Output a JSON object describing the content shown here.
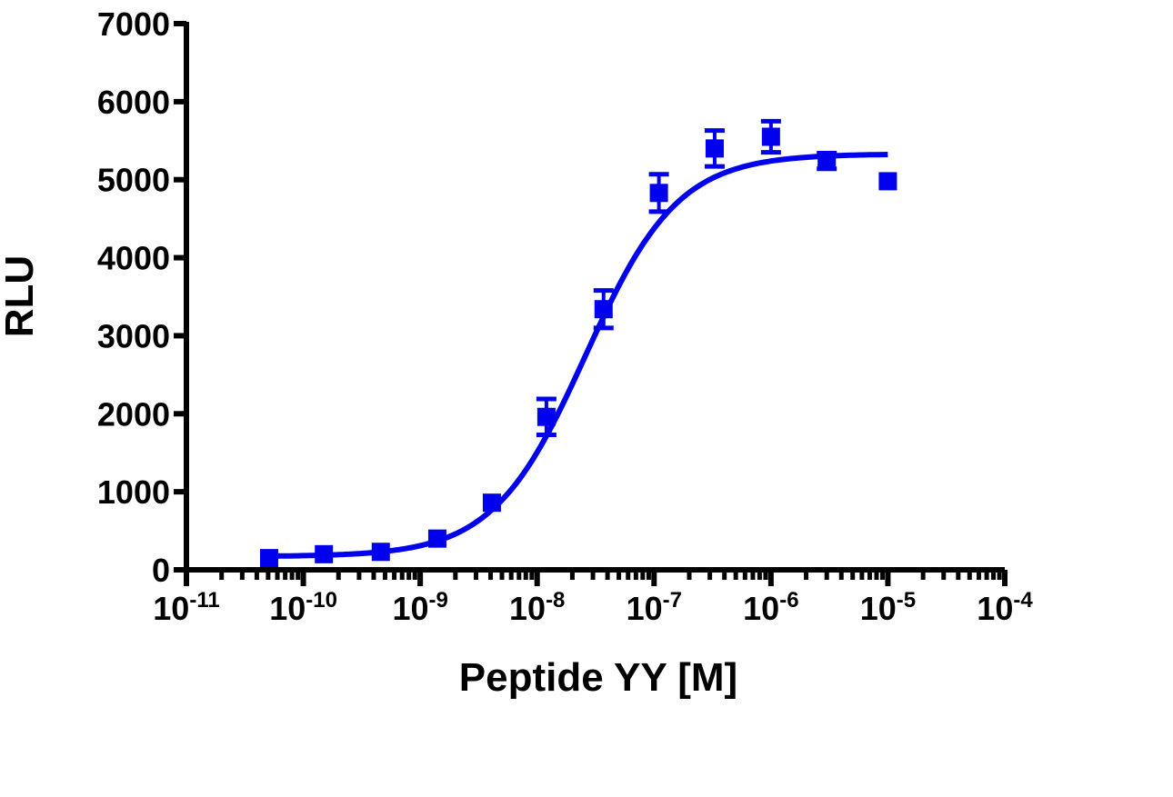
{
  "chart_data": {
    "type": "scatter",
    "title": "",
    "xlabel": "Peptide YY [M]",
    "ylabel": "RLU",
    "xscale": "log",
    "xlim": [
      1e-11,
      0.0001
    ],
    "ylim": [
      0,
      7000
    ],
    "grid": false,
    "x_tick_labels": [
      {
        "base": "10",
        "exp": "-11"
      },
      {
        "base": "10",
        "exp": "-10"
      },
      {
        "base": "10",
        "exp": "-9"
      },
      {
        "base": "10",
        "exp": "-8"
      },
      {
        "base": "10",
        "exp": "-7"
      },
      {
        "base": "10",
        "exp": "-6"
      },
      {
        "base": "10",
        "exp": "-5"
      },
      {
        "base": "10",
        "exp": "-4"
      }
    ],
    "y_tick_labels": [
      "0",
      "1000",
      "2000",
      "3000",
      "4000",
      "5000",
      "6000",
      "7000"
    ],
    "color": "#0000ee",
    "marker": "square",
    "points": [
      {
        "x": 5.1e-11,
        "y": 150,
        "err": 0
      },
      {
        "x": 1.5e-10,
        "y": 200,
        "err": 0
      },
      {
        "x": 4.6e-10,
        "y": 230,
        "err": 0
      },
      {
        "x": 1.4e-09,
        "y": 400,
        "err": 0
      },
      {
        "x": 4.1e-09,
        "y": 860,
        "err": 0
      },
      {
        "x": 1.2e-08,
        "y": 1960,
        "err": 230
      },
      {
        "x": 3.7e-08,
        "y": 3340,
        "err": 240
      },
      {
        "x": 1.1e-07,
        "y": 4830,
        "err": 240
      },
      {
        "x": 3.3e-07,
        "y": 5400,
        "err": 230
      },
      {
        "x": 1e-06,
        "y": 5550,
        "err": 200
      },
      {
        "x": 3e-06,
        "y": 5240,
        "err": 100
      },
      {
        "x": 1e-05,
        "y": 4980,
        "err": 0
      }
    ],
    "fit": {
      "model": "sigmoidal dose-response",
      "bottom": 170,
      "top": 5330,
      "ec50": 2.6e-08,
      "hill": 1.1,
      "x_range": [
        5.1e-11,
        1e-05
      ]
    }
  }
}
